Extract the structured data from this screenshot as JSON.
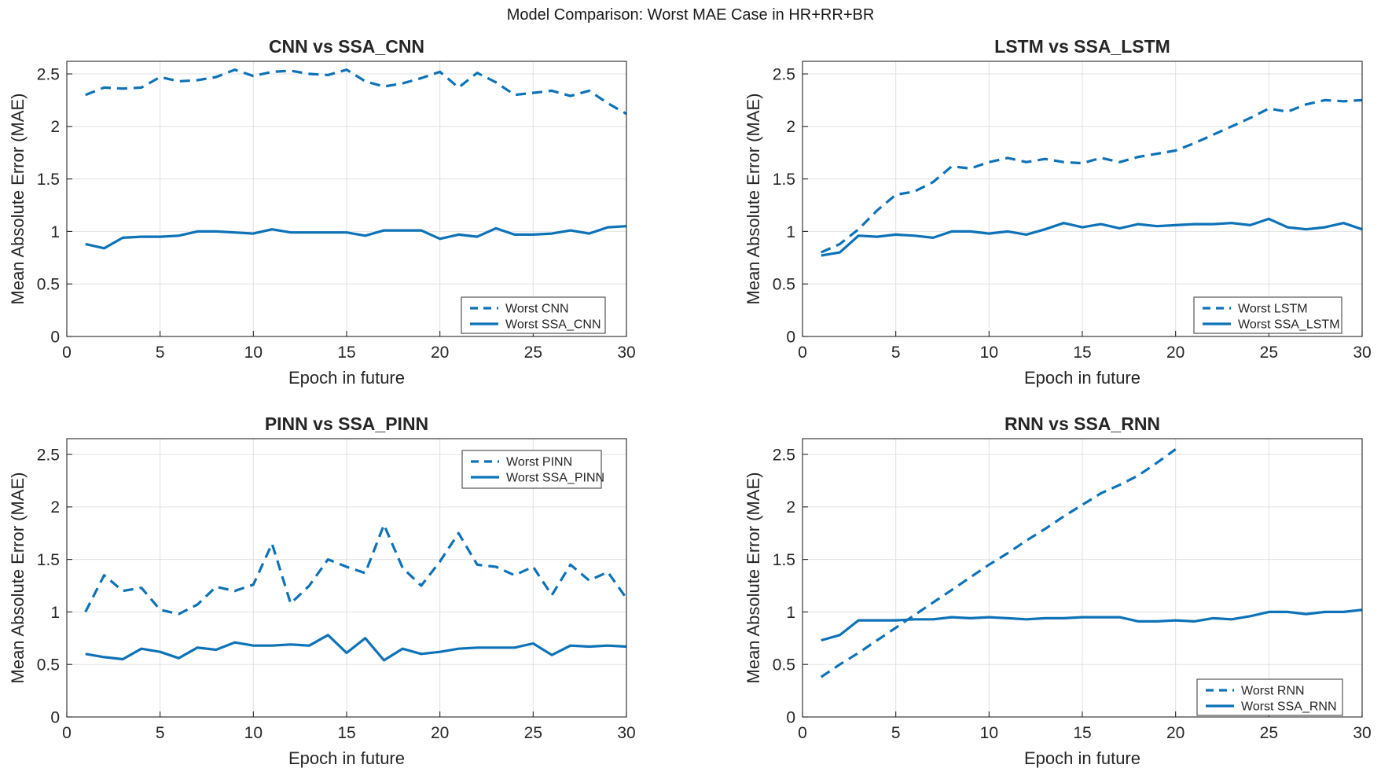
{
  "suptitle": "Model Comparison: Worst MAE Case in HR+RR+BR",
  "shared": {
    "xlabel": "Epoch in future",
    "ylabel": "Mean Absolute Error (MAE)",
    "xlim": [
      0,
      30
    ],
    "xticks": [
      0,
      5,
      10,
      15,
      20,
      25,
      30
    ],
    "yticks": [
      0,
      0.5,
      1,
      1.5,
      2,
      2.5
    ],
    "grid": true,
    "line_color": "#0d72b8",
    "axis_color": "#262626",
    "grid_color": "#e2e2e2",
    "legend_border_color": "#555555"
  },
  "chart_data": [
    {
      "type": "line",
      "title": "CNN vs SSA_CNN",
      "xlabel": "Epoch in future",
      "ylabel": "Mean Absolute Error (MAE)",
      "ylim": [
        0,
        2.62
      ],
      "legend_position": "bottom-right",
      "series": [
        {
          "name": "Worst CNN",
          "style": "dashed",
          "x": [
            1,
            2,
            3,
            4,
            5,
            6,
            7,
            8,
            9,
            10,
            11,
            12,
            13,
            14,
            15,
            16,
            17,
            18,
            19,
            20,
            21,
            22,
            23,
            24,
            25,
            26,
            27,
            28,
            29,
            30
          ],
          "y": [
            2.3,
            2.37,
            2.36,
            2.37,
            2.47,
            2.43,
            2.44,
            2.47,
            2.54,
            2.48,
            2.52,
            2.53,
            2.5,
            2.49,
            2.54,
            2.43,
            2.38,
            2.41,
            2.46,
            2.52,
            2.37,
            2.51,
            2.42,
            2.3,
            2.32,
            2.34,
            2.29,
            2.34,
            2.22,
            2.12
          ]
        },
        {
          "name": "Worst SSA_CNN",
          "style": "solid",
          "x": [
            1,
            2,
            3,
            4,
            5,
            6,
            7,
            8,
            9,
            10,
            11,
            12,
            13,
            14,
            15,
            16,
            17,
            18,
            19,
            20,
            21,
            22,
            23,
            24,
            25,
            26,
            27,
            28,
            29,
            30
          ],
          "y": [
            0.88,
            0.84,
            0.94,
            0.95,
            0.95,
            0.96,
            1.0,
            1.0,
            0.99,
            0.98,
            1.02,
            0.99,
            0.99,
            0.99,
            0.99,
            0.96,
            1.01,
            1.01,
            1.01,
            0.93,
            0.97,
            0.95,
            1.03,
            0.97,
            0.97,
            0.98,
            1.01,
            0.98,
            1.04,
            1.05
          ]
        }
      ]
    },
    {
      "type": "line",
      "title": "LSTM vs SSA_LSTM",
      "xlabel": "Epoch in future",
      "ylabel": "Mean Absolute Error (MAE)",
      "ylim": [
        0,
        2.62
      ],
      "legend_position": "bottom-right",
      "series": [
        {
          "name": "Worst LSTM",
          "style": "dashed",
          "x": [
            1,
            2,
            3,
            4,
            5,
            6,
            7,
            8,
            9,
            10,
            11,
            12,
            13,
            14,
            15,
            16,
            17,
            18,
            19,
            20,
            21,
            22,
            23,
            24,
            25,
            26,
            27,
            28,
            29,
            30
          ],
          "y": [
            0.8,
            0.88,
            1.02,
            1.2,
            1.35,
            1.38,
            1.47,
            1.62,
            1.6,
            1.66,
            1.7,
            1.66,
            1.69,
            1.66,
            1.65,
            1.7,
            1.66,
            1.71,
            1.74,
            1.77,
            1.84,
            1.92,
            2.0,
            2.08,
            2.17,
            2.14,
            2.21,
            2.25,
            2.24,
            2.25
          ]
        },
        {
          "name": "Worst SSA_LSTM",
          "style": "solid",
          "x": [
            1,
            2,
            3,
            4,
            5,
            6,
            7,
            8,
            9,
            10,
            11,
            12,
            13,
            14,
            15,
            16,
            17,
            18,
            19,
            20,
            21,
            22,
            23,
            24,
            25,
            26,
            27,
            28,
            29,
            30
          ],
          "y": [
            0.77,
            0.8,
            0.96,
            0.95,
            0.97,
            0.96,
            0.94,
            1.0,
            1.0,
            0.98,
            1.0,
            0.97,
            1.02,
            1.08,
            1.04,
            1.07,
            1.03,
            1.07,
            1.05,
            1.06,
            1.07,
            1.07,
            1.08,
            1.06,
            1.12,
            1.04,
            1.02,
            1.04,
            1.08,
            1.02
          ]
        }
      ]
    },
    {
      "type": "line",
      "title": "PINN vs SSA_PINN",
      "xlabel": "Epoch in future",
      "ylabel": "Mean Absolute Error (MAE)",
      "ylim": [
        0,
        2.65
      ],
      "legend_position": "top-right",
      "series": [
        {
          "name": "Worst PINN",
          "style": "dashed",
          "x": [
            1,
            2,
            3,
            4,
            5,
            6,
            7,
            8,
            9,
            10,
            11,
            12,
            13,
            14,
            15,
            16,
            17,
            18,
            19,
            20,
            21,
            22,
            23,
            24,
            25,
            26,
            27,
            28,
            29,
            30
          ],
          "y": [
            1.0,
            1.35,
            1.2,
            1.23,
            1.02,
            0.98,
            1.07,
            1.24,
            1.2,
            1.26,
            1.65,
            1.08,
            1.25,
            1.5,
            1.43,
            1.37,
            1.83,
            1.42,
            1.25,
            1.48,
            1.75,
            1.45,
            1.43,
            1.35,
            1.43,
            1.16,
            1.45,
            1.3,
            1.38,
            1.13
          ]
        },
        {
          "name": "Worst SSA_PINN",
          "style": "solid",
          "x": [
            1,
            2,
            3,
            4,
            5,
            6,
            7,
            8,
            9,
            10,
            11,
            12,
            13,
            14,
            15,
            16,
            17,
            18,
            19,
            20,
            21,
            22,
            23,
            24,
            25,
            26,
            27,
            28,
            29,
            30
          ],
          "y": [
            0.6,
            0.57,
            0.55,
            0.65,
            0.62,
            0.56,
            0.66,
            0.64,
            0.71,
            0.68,
            0.68,
            0.69,
            0.68,
            0.78,
            0.61,
            0.75,
            0.54,
            0.65,
            0.6,
            0.62,
            0.65,
            0.66,
            0.66,
            0.66,
            0.7,
            0.59,
            0.68,
            0.67,
            0.68,
            0.67
          ]
        }
      ]
    },
    {
      "type": "line",
      "title": "RNN vs SSA_RNN",
      "xlabel": "Epoch in future",
      "ylabel": "Mean Absolute Error (MAE)",
      "ylim": [
        0,
        2.65
      ],
      "legend_position": "bottom-right",
      "series": [
        {
          "name": "Worst RNN",
          "style": "dashed",
          "x": [
            1,
            2,
            3,
            4,
            5,
            6,
            7,
            8,
            9,
            10,
            11,
            12,
            13,
            14,
            15,
            16,
            17,
            18,
            19,
            20
          ],
          "y": [
            0.38,
            0.5,
            0.61,
            0.73,
            0.85,
            0.97,
            1.09,
            1.21,
            1.33,
            1.45,
            1.56,
            1.68,
            1.79,
            1.91,
            2.02,
            2.13,
            2.21,
            2.3,
            2.42,
            2.55
          ]
        },
        {
          "name": "Worst SSA_RNN",
          "style": "solid",
          "x": [
            1,
            2,
            3,
            4,
            5,
            6,
            7,
            8,
            9,
            10,
            11,
            12,
            13,
            14,
            15,
            16,
            17,
            18,
            19,
            20,
            21,
            22,
            23,
            24,
            25,
            26,
            27,
            28,
            29,
            30
          ],
          "y": [
            0.73,
            0.78,
            0.92,
            0.92,
            0.92,
            0.93,
            0.93,
            0.95,
            0.94,
            0.95,
            0.94,
            0.93,
            0.94,
            0.94,
            0.95,
            0.95,
            0.95,
            0.91,
            0.91,
            0.92,
            0.91,
            0.94,
            0.93,
            0.96,
            1.0,
            1.0,
            0.98,
            1.0,
            1.0,
            1.02
          ]
        }
      ]
    }
  ]
}
